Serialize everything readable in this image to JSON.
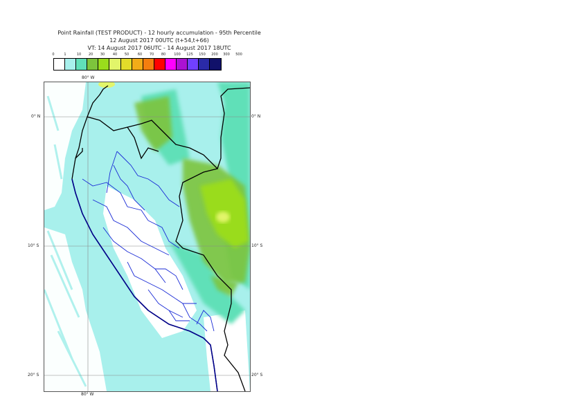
{
  "header": {
    "line1": "Point Rainfall (TEST PRODUCT) - 12 hourly accumulation - 95th Percentile",
    "line2": "12 August 2017 00UTC (t+54,t+66)",
    "line3": "VT: 14 August 2017 06UTC - 14 August 2017 18UTC"
  },
  "legend": {
    "labels": [
      "0",
      "1",
      "10",
      "20",
      "30",
      "40",
      "50",
      "60",
      "70",
      "80",
      "100",
      "125",
      "150",
      "200",
      "300",
      "500"
    ],
    "colors": [
      "#ffffff",
      "#a8f0ec",
      "#60e0b8",
      "#7dc43c",
      "#9adc1c",
      "#e2f56a",
      "#e2dc2a",
      "#f2ac18",
      "#f57e0e",
      "#ff0000",
      "#ff00ff",
      "#ab12d3",
      "#7040ff",
      "#2a2aa8",
      "#11116a"
    ]
  },
  "map": {
    "lon_labels_top": [
      "80° W"
    ],
    "lon_labels_bottom": [
      "80° W"
    ],
    "lat_labels_right": [
      "0° N",
      "10° S",
      "20° S"
    ],
    "lat_labels_left": [
      "0° N",
      "10° S",
      "20° S"
    ]
  }
}
